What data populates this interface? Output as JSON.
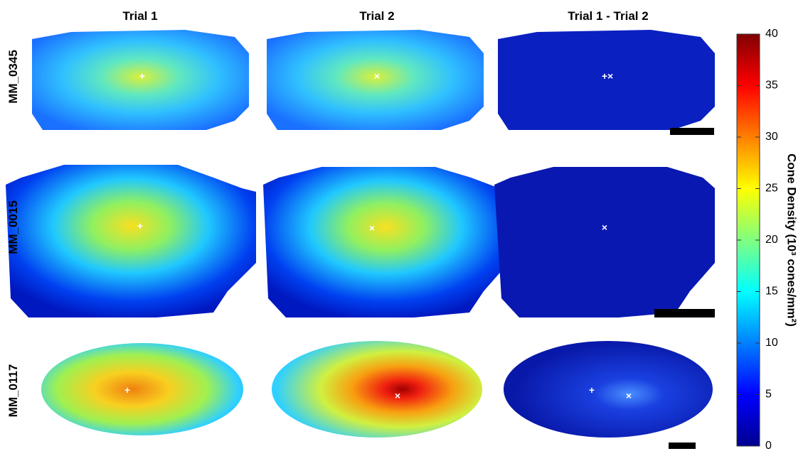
{
  "chart_data": {
    "type": "heatmap",
    "columns": [
      "Trial 1",
      "Trial 2",
      "Trial 1 - Trial 2"
    ],
    "rows": [
      "MM_0345",
      "MM_0015",
      "MM_0117"
    ],
    "colorbar": {
      "label": "Cone Density (10³ cones/mm²)",
      "lim": [
        0,
        40
      ],
      "ticks": [
        0,
        5,
        10,
        15,
        20,
        25,
        30,
        35,
        40
      ],
      "colormap": "jet"
    }
  }
}
